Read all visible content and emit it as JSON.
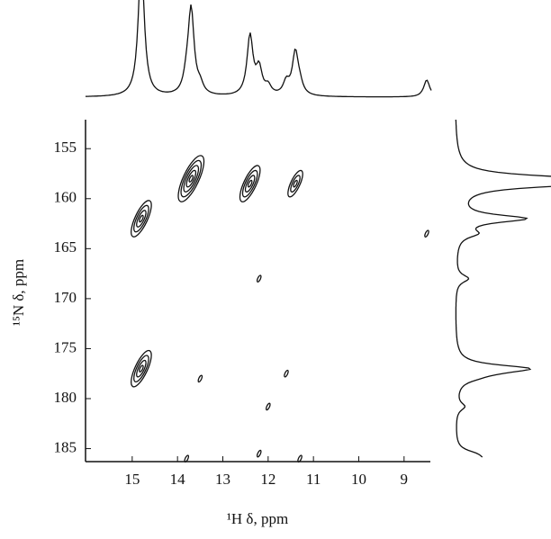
{
  "chart_data": {
    "type": "contour",
    "x_label": "¹H δ, ppm",
    "y_label": "¹⁵N δ, ppm",
    "xlim": [
      16.03,
      8.42
    ],
    "ylim": [
      152.1,
      186.3
    ],
    "xticks": [
      15,
      14,
      13,
      12,
      11,
      10,
      9
    ],
    "yticks": [
      155,
      160,
      165,
      170,
      175,
      180,
      185
    ],
    "color": "#111111",
    "peaks": {
      "x": [
        14.8,
        13.7,
        12.4,
        11.4,
        14.8,
        8.5,
        12.2,
        13.5,
        11.6,
        12.0,
        13.8,
        12.2,
        11.3
      ],
      "y": [
        162,
        158,
        158.5,
        158.5,
        177,
        163.5,
        168,
        178,
        177.5,
        180.8,
        186,
        185.5,
        186
      ],
      "intensity": [
        0.8,
        1,
        0.7,
        0.5,
        0.8,
        0.2,
        0.15,
        0.1,
        0.15,
        0.1,
        0.15,
        0.15,
        0.1
      ]
    }
  }
}
